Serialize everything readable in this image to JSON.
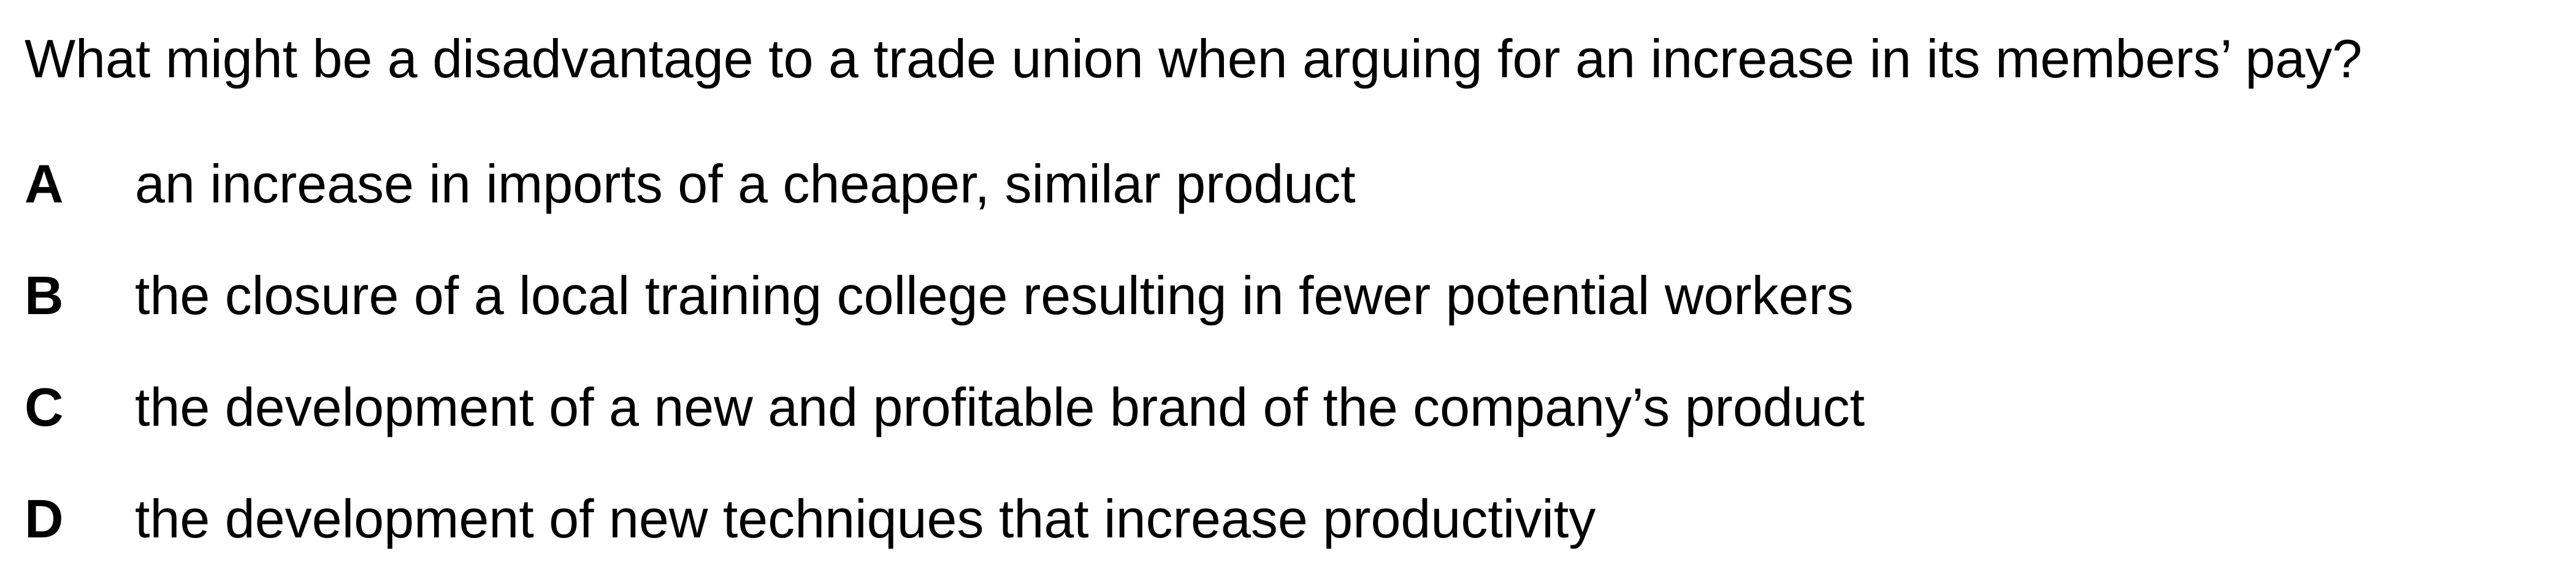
{
  "question": "What might be a disadvantage to a trade union when arguing for an increase in its members’ pay?",
  "options": [
    {
      "letter": "A",
      "text": "an increase in imports of a cheaper, similar product"
    },
    {
      "letter": "B",
      "text": "the closure of a local training college resulting in fewer potential workers"
    },
    {
      "letter": "C",
      "text": "the development of a new and profitable brand of the company’s product"
    },
    {
      "letter": "D",
      "text": "the development of new techniques that increase productivity"
    }
  ]
}
